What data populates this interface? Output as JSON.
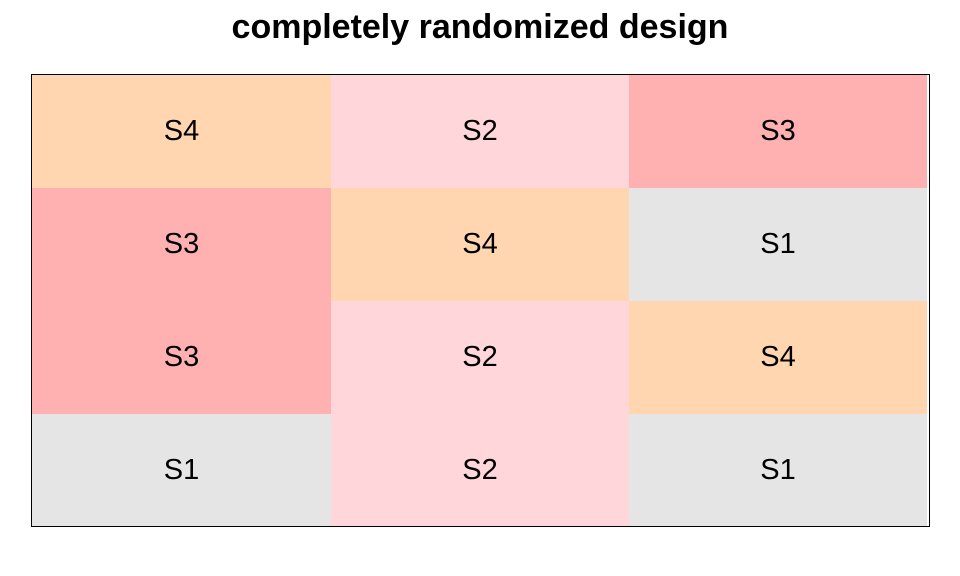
{
  "title": "completely randomized design",
  "colors": {
    "S1": "#e5e5e5",
    "S2": "#ffd6d9",
    "S3": "#ffb0b0",
    "S4": "#ffd6b0"
  },
  "layout": {
    "rows": 4,
    "columns": 3
  },
  "cells": [
    [
      "S4",
      "S2",
      "S3"
    ],
    [
      "S3",
      "S4",
      "S1"
    ],
    [
      "S3",
      "S2",
      "S4"
    ],
    [
      "S1",
      "S2",
      "S1"
    ]
  ]
}
